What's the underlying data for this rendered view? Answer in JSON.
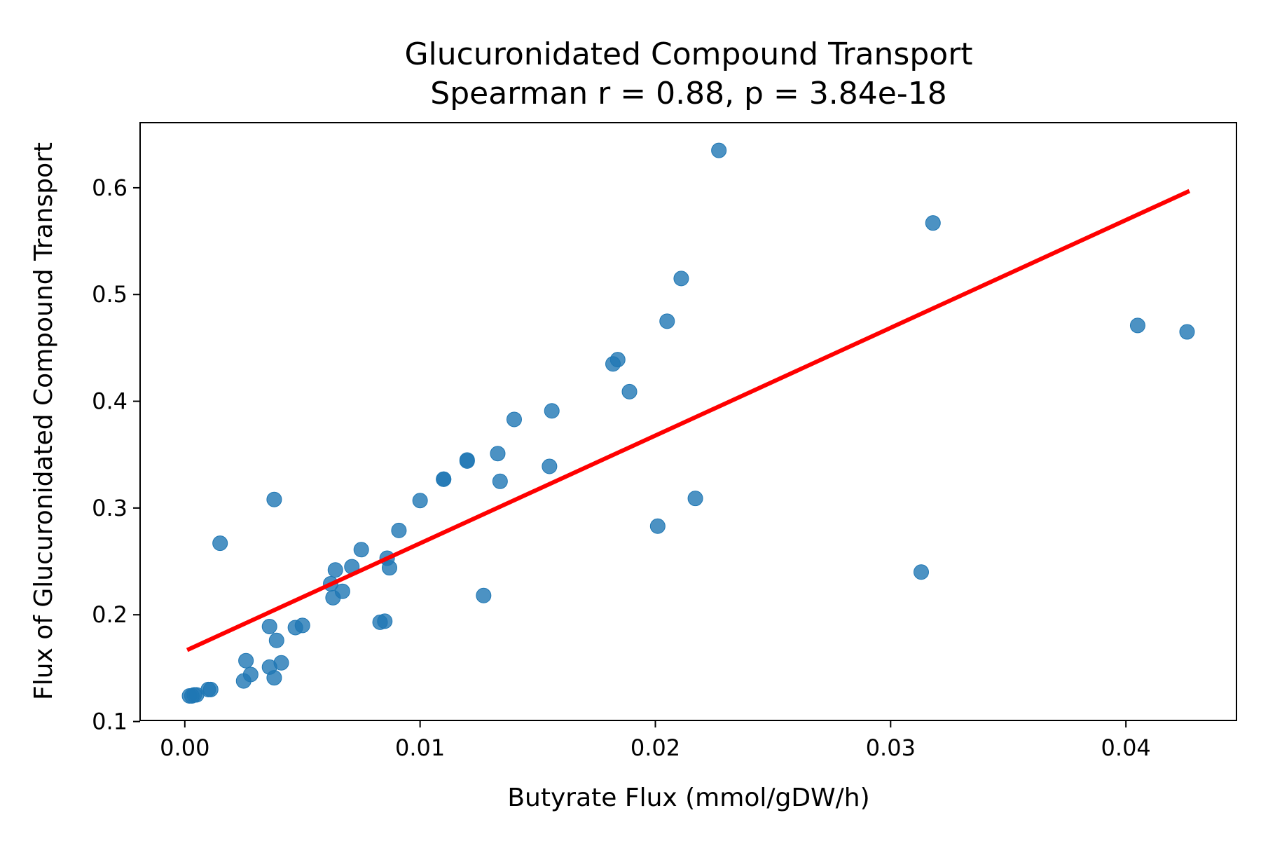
{
  "chart_data": {
    "type": "scatter",
    "title": "Glucuronidated Compound Transport",
    "subtitle": "Spearman r = 0.88, p = 3.84e-18",
    "xlabel": "Butyrate Flux (mmol/gDW/h)",
    "ylabel": "Flux of Glucuronidated Compound Transport",
    "xlim": [
      -0.0019,
      0.0447
    ],
    "ylim": [
      0.101,
      0.661
    ],
    "xticks": [
      0.0,
      0.01,
      0.02,
      0.03,
      0.04
    ],
    "xtick_labels": [
      "0.00",
      "0.01",
      "0.02",
      "0.03",
      "0.04"
    ],
    "yticks": [
      0.1,
      0.2,
      0.3,
      0.4,
      0.5,
      0.6
    ],
    "ytick_labels": [
      "0.1",
      "0.2",
      "0.3",
      "0.4",
      "0.5",
      "0.6"
    ],
    "grid": false,
    "colors": {
      "points": "#1f77b4",
      "fit_line": "#ff0000"
    },
    "points": [
      {
        "x": 0.0002,
        "y": 0.124
      },
      {
        "x": 0.0003,
        "y": 0.124
      },
      {
        "x": 0.0004,
        "y": 0.125
      },
      {
        "x": 0.0005,
        "y": 0.125
      },
      {
        "x": 0.001,
        "y": 0.13
      },
      {
        "x": 0.0011,
        "y": 0.13
      },
      {
        "x": 0.0015,
        "y": 0.267
      },
      {
        "x": 0.0025,
        "y": 0.138
      },
      {
        "x": 0.0026,
        "y": 0.157
      },
      {
        "x": 0.0028,
        "y": 0.144
      },
      {
        "x": 0.0036,
        "y": 0.189
      },
      {
        "x": 0.0036,
        "y": 0.151
      },
      {
        "x": 0.0038,
        "y": 0.308
      },
      {
        "x": 0.0039,
        "y": 0.176
      },
      {
        "x": 0.0038,
        "y": 0.141
      },
      {
        "x": 0.0041,
        "y": 0.155
      },
      {
        "x": 0.0047,
        "y": 0.188
      },
      {
        "x": 0.005,
        "y": 0.19
      },
      {
        "x": 0.0062,
        "y": 0.229
      },
      {
        "x": 0.0063,
        "y": 0.216
      },
      {
        "x": 0.0064,
        "y": 0.242
      },
      {
        "x": 0.0067,
        "y": 0.222
      },
      {
        "x": 0.0071,
        "y": 0.245
      },
      {
        "x": 0.0075,
        "y": 0.261
      },
      {
        "x": 0.0083,
        "y": 0.193
      },
      {
        "x": 0.0085,
        "y": 0.194
      },
      {
        "x": 0.0086,
        "y": 0.253
      },
      {
        "x": 0.0087,
        "y": 0.244
      },
      {
        "x": 0.0091,
        "y": 0.279
      },
      {
        "x": 0.01,
        "y": 0.307
      },
      {
        "x": 0.011,
        "y": 0.327
      },
      {
        "x": 0.011,
        "y": 0.327
      },
      {
        "x": 0.012,
        "y": 0.344
      },
      {
        "x": 0.012,
        "y": 0.345
      },
      {
        "x": 0.0127,
        "y": 0.218
      },
      {
        "x": 0.0133,
        "y": 0.351
      },
      {
        "x": 0.0134,
        "y": 0.325
      },
      {
        "x": 0.014,
        "y": 0.383
      },
      {
        "x": 0.0155,
        "y": 0.339
      },
      {
        "x": 0.0156,
        "y": 0.391
      },
      {
        "x": 0.0182,
        "y": 0.435
      },
      {
        "x": 0.0184,
        "y": 0.439
      },
      {
        "x": 0.0189,
        "y": 0.409
      },
      {
        "x": 0.0201,
        "y": 0.283
      },
      {
        "x": 0.0205,
        "y": 0.475
      },
      {
        "x": 0.0211,
        "y": 0.515
      },
      {
        "x": 0.0217,
        "y": 0.309
      },
      {
        "x": 0.0227,
        "y": 0.635
      },
      {
        "x": 0.0313,
        "y": 0.24
      },
      {
        "x": 0.0318,
        "y": 0.567
      },
      {
        "x": 0.0405,
        "y": 0.471
      },
      {
        "x": 0.0426,
        "y": 0.465
      }
    ],
    "fit_line": {
      "x": [
        0.0001,
        0.0427
      ],
      "y": [
        0.167,
        0.597
      ]
    }
  }
}
